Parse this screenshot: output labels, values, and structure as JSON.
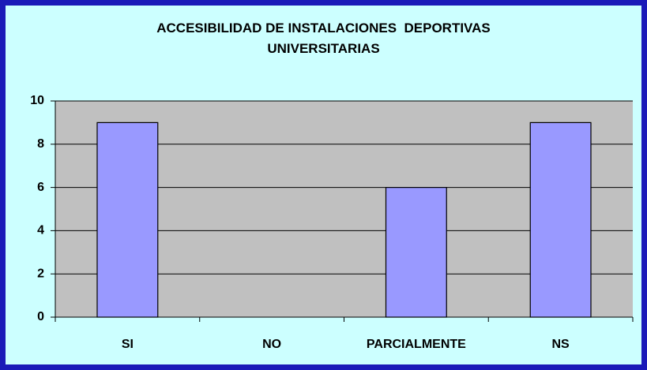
{
  "chart_data": {
    "type": "bar",
    "title": "ACCESIBILIDAD DE INSTALACIONES  DEPORTIVAS UNIVERSITARIAS",
    "categories": [
      "SI",
      "NO",
      "PARCIALMENTE",
      "NS"
    ],
    "values": [
      9,
      0,
      6,
      9
    ],
    "color": "#9999ff",
    "ylim": [
      0,
      10
    ],
    "yticks": [
      0,
      2,
      4,
      6,
      8,
      10
    ],
    "grid": true
  }
}
